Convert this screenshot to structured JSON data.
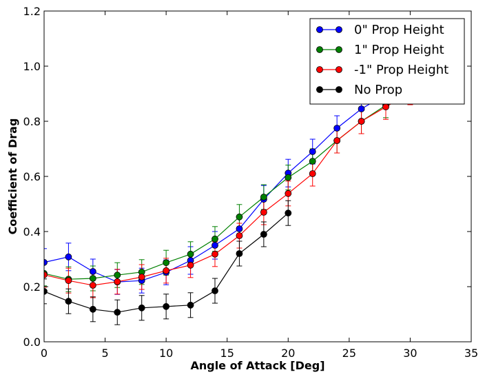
{
  "chart_data": {
    "type": "line",
    "xlabel": "Angle of Attack [Deg]",
    "ylabel": "Coefficient of Drag",
    "xlim": [
      0,
      35
    ],
    "ylim": [
      0,
      1.2
    ],
    "x_ticks": [
      0,
      5,
      10,
      15,
      20,
      25,
      30,
      35
    ],
    "y_ticks": [
      0.0,
      0.2,
      0.4,
      0.6,
      0.8,
      1.0,
      1.2
    ],
    "grid": false,
    "legend_position": "top-right",
    "series": [
      {
        "name": "0\" Prop Height",
        "color": "#0000ff",
        "x": [
          0,
          2,
          4,
          6,
          8,
          10,
          12,
          14,
          16,
          18,
          20,
          22,
          24,
          26,
          28,
          30
        ],
        "y": [
          0.288,
          0.308,
          0.255,
          0.217,
          0.222,
          0.252,
          0.295,
          0.35,
          0.41,
          0.517,
          0.612,
          0.69,
          0.775,
          0.845,
          0.897,
          0.935
        ],
        "err": [
          0.05,
          0.05,
          0.045,
          0.045,
          0.045,
          0.045,
          0.05,
          0.05,
          0.045,
          0.05,
          0.05,
          0.045,
          0.045,
          0.045,
          0.045,
          0.045
        ]
      },
      {
        "name": "1\" Prop Height",
        "color": "#008000",
        "x": [
          0,
          2,
          4,
          6,
          8,
          10,
          12,
          14,
          16,
          18,
          20,
          22,
          24,
          26,
          28,
          30
        ],
        "y": [
          0.248,
          0.227,
          0.23,
          0.242,
          0.253,
          0.287,
          0.318,
          0.373,
          0.453,
          0.525,
          0.596,
          0.655,
          0.73,
          0.8,
          0.858,
          0.915
        ],
        "err": [
          0.045,
          0.045,
          0.045,
          0.045,
          0.045,
          0.045,
          0.045,
          0.045,
          0.045,
          0.045,
          0.045,
          0.045,
          0.045,
          0.045,
          0.045,
          0.045
        ]
      },
      {
        "name": "-1\" Prop Height",
        "color": "#ff0000",
        "x": [
          0,
          2,
          4,
          6,
          8,
          10,
          12,
          14,
          16,
          18,
          20,
          22,
          24,
          26,
          28,
          30
        ],
        "y": [
          0.243,
          0.222,
          0.205,
          0.218,
          0.235,
          0.258,
          0.278,
          0.318,
          0.385,
          0.47,
          0.538,
          0.61,
          0.73,
          0.8,
          0.852,
          0.905
        ],
        "err": [
          0.045,
          0.045,
          0.045,
          0.045,
          0.045,
          0.045,
          0.045,
          0.045,
          0.045,
          0.045,
          0.045,
          0.045,
          0.045,
          0.045,
          0.045,
          0.045
        ]
      },
      {
        "name": "No Prop",
        "color": "#000000",
        "x": [
          0,
          2,
          4,
          6,
          8,
          10,
          12,
          14,
          16,
          18,
          20
        ],
        "y": [
          0.183,
          0.147,
          0.118,
          0.107,
          0.123,
          0.128,
          0.133,
          0.185,
          0.32,
          0.39,
          0.467
        ],
        "err": [
          0.045,
          0.045,
          0.045,
          0.045,
          0.045,
          0.045,
          0.045,
          0.045,
          0.045,
          0.045,
          0.045
        ]
      }
    ]
  }
}
